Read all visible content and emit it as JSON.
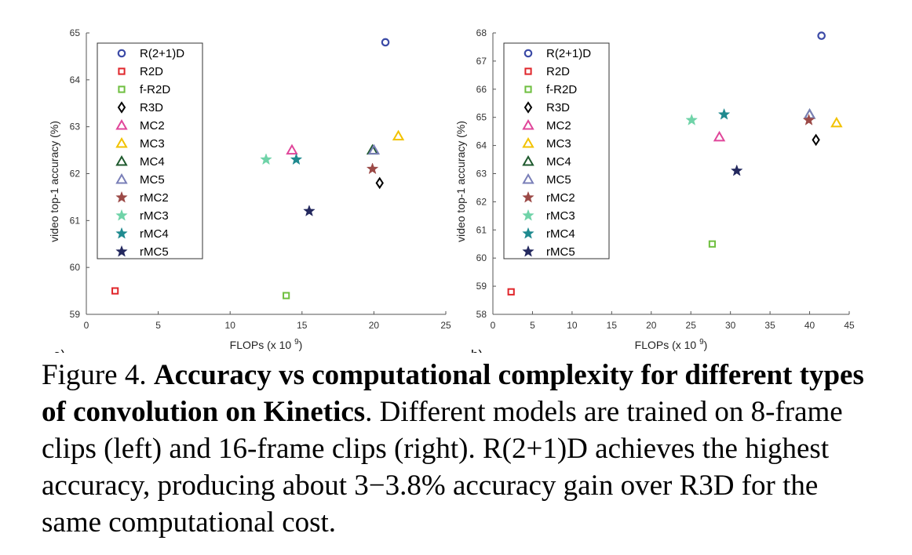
{
  "caption": {
    "prefix": "Figure 4. ",
    "bold": "Accuracy vs computational complexity for different types of convolution on Kinetics",
    "rest": ". Different models are trained on 8-frame clips (left) and 16-frame clips (right). R(2+1)D achieves the highest accuracy, producing about 3−3.8% accuracy gain over R3D for the same computational cost."
  },
  "legend_styles": [
    {
      "name": "R(2+1)D",
      "marker": "circle",
      "color": "#3b4aa6"
    },
    {
      "name": "R2D",
      "marker": "square",
      "color": "#e0262b"
    },
    {
      "name": "f-R2D",
      "marker": "square",
      "color": "#6fbf3f"
    },
    {
      "name": "R3D",
      "marker": "diamond",
      "color": "#000000"
    },
    {
      "name": "MC2",
      "marker": "triangle",
      "color": "#e0469a"
    },
    {
      "name": "MC3",
      "marker": "triangle",
      "color": "#f2c200"
    },
    {
      "name": "MC4",
      "marker": "triangle",
      "color": "#1f5a2e"
    },
    {
      "name": "MC5",
      "marker": "triangle",
      "color": "#7a7fb8"
    },
    {
      "name": "rMC2",
      "marker": "star",
      "color": "#9c4a47"
    },
    {
      "name": "rMC3",
      "marker": "star",
      "color": "#6fd3a8"
    },
    {
      "name": "rMC4",
      "marker": "star",
      "color": "#1f8a8f"
    },
    {
      "name": "rMC5",
      "marker": "star",
      "color": "#23285e"
    }
  ],
  "chart_data": [
    {
      "panel": "a)",
      "type": "scatter",
      "xlabel": "FLOPs (x 10 9)",
      "ylabel": "video top-1 accuracy (%)",
      "xlim": [
        0,
        25
      ],
      "ylim": [
        59,
        65
      ],
      "xticks": [
        "0",
        "5",
        "10",
        "15",
        "20",
        "25"
      ],
      "yticks": [
        "59",
        "60",
        "61",
        "62",
        "63",
        "64",
        "65"
      ],
      "legend_position": "top-left",
      "series": [
        {
          "name": "R(2+1)D",
          "x": 20.8,
          "y": 64.8
        },
        {
          "name": "R2D",
          "x": 2.0,
          "y": 59.5
        },
        {
          "name": "f-R2D",
          "x": 13.9,
          "y": 59.4
        },
        {
          "name": "R3D",
          "x": 20.4,
          "y": 61.8
        },
        {
          "name": "MC2",
          "x": 14.3,
          "y": 62.5
        },
        {
          "name": "MC3",
          "x": 21.7,
          "y": 62.8
        },
        {
          "name": "MC4",
          "x": 19.9,
          "y": 62.5
        },
        {
          "name": "MC5",
          "x": 20.0,
          "y": 62.5
        },
        {
          "name": "rMC2",
          "x": 19.9,
          "y": 62.1
        },
        {
          "name": "rMC3",
          "x": 12.5,
          "y": 62.3
        },
        {
          "name": "rMC4",
          "x": 14.6,
          "y": 62.3
        },
        {
          "name": "rMC5",
          "x": 15.5,
          "y": 61.2
        }
      ]
    },
    {
      "panel": "b)",
      "type": "scatter",
      "xlabel": "FLOPs (x 10 9)",
      "ylabel": "video top-1 accuracy (%)",
      "xlim": [
        0,
        45
      ],
      "ylim": [
        58,
        68
      ],
      "xticks": [
        "0",
        "5",
        "10",
        "15",
        "20",
        "25",
        "30",
        "35",
        "40",
        "45"
      ],
      "yticks": [
        "58",
        "59",
        "60",
        "61",
        "62",
        "63",
        "64",
        "65",
        "66",
        "67",
        "68"
      ],
      "legend_position": "top-left",
      "series": [
        {
          "name": "R(2+1)D",
          "x": 41.5,
          "y": 67.9
        },
        {
          "name": "R2D",
          "x": 2.3,
          "y": 58.8
        },
        {
          "name": "f-R2D",
          "x": 27.7,
          "y": 60.5
        },
        {
          "name": "R3D",
          "x": 40.8,
          "y": 64.2
        },
        {
          "name": "MC2",
          "x": 28.6,
          "y": 64.3
        },
        {
          "name": "MC3",
          "x": 43.4,
          "y": 64.8
        },
        {
          "name": "MC4",
          "x": 40.0,
          "y": 65.1
        },
        {
          "name": "MC5",
          "x": 40.0,
          "y": 65.1
        },
        {
          "name": "rMC2",
          "x": 39.9,
          "y": 64.9
        },
        {
          "name": "rMC3",
          "x": 25.1,
          "y": 64.9
        },
        {
          "name": "rMC4",
          "x": 29.2,
          "y": 65.1
        },
        {
          "name": "rMC5",
          "x": 30.8,
          "y": 63.1
        }
      ]
    }
  ]
}
